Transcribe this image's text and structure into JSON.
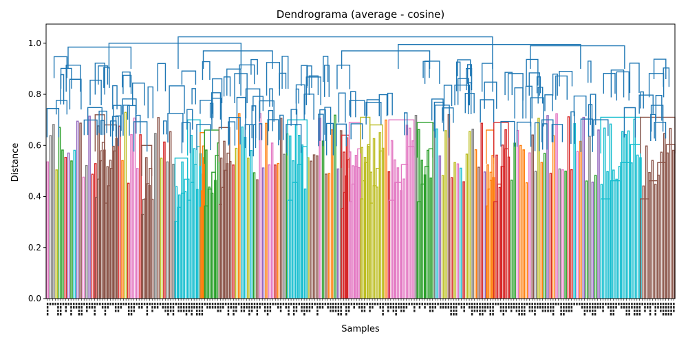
{
  "chart_data": {
    "type": "dendrogram",
    "title": "Dendrograma (average - cosine)",
    "xlabel": "Samples",
    "ylabel": "Distance",
    "ylim": [
      0.0,
      1.075
    ],
    "yticks": [
      0.0,
      0.2,
      0.4,
      0.6,
      0.8,
      1.0
    ],
    "ytick_labels": [
      "0.0",
      "0.2",
      "0.4",
      "0.6",
      "0.8",
      "1.0"
    ],
    "above_threshold_color": "#1f77b4",
    "cluster_colors": [
      "#ff7f0e",
      "#2ca02c",
      "#d62728",
      "#9467bd",
      "#8c564b",
      "#e377c2",
      "#7f7f7f",
      "#bcbd22",
      "#17becf"
    ],
    "top_merges": [
      {
        "left": [
          0.0,
          0.42
        ],
        "right": [
          0.42,
          1.0
        ],
        "height": 1.025
      },
      {
        "left": [
          0.0,
          0.2
        ],
        "right": [
          0.2,
          0.42
        ],
        "height": 1.0
      },
      {
        "left": [
          0.42,
          0.7
        ],
        "right": [
          0.7,
          1.0
        ],
        "height": 0.995
      },
      {
        "left": [
          0.0,
          0.07
        ],
        "right": [
          0.07,
          0.2
        ],
        "height": 0.985
      },
      {
        "left": [
          0.7,
          0.84
        ],
        "right": [
          0.84,
          1.0
        ],
        "height": 0.99
      },
      {
        "left": [
          0.2,
          0.3
        ],
        "right": [
          0.3,
          0.42
        ],
        "height": 0.97
      },
      {
        "left": [
          0.42,
          0.52
        ],
        "right": [
          0.52,
          0.7
        ],
        "height": 0.97
      }
    ],
    "clusters": [
      {
        "x": [
          0.078,
          0.093
        ],
        "color": "#8c564b",
        "height": 0.72
      },
      {
        "x": [
          0.093,
          0.112
        ],
        "color": "#8c564b",
        "height": 0.68
      },
      {
        "x": [
          0.152,
          0.168
        ],
        "color": "#8c564b",
        "height": 0.6
      },
      {
        "x": [
          0.205,
          0.225
        ],
        "color": "#17becf",
        "height": 0.55
      },
      {
        "x": [
          0.225,
          0.245
        ],
        "color": "#17becf",
        "height": 0.7
      },
      {
        "x": [
          0.245,
          0.252
        ],
        "color": "#ff7f0e",
        "height": 0.65
      },
      {
        "x": [
          0.252,
          0.275
        ],
        "color": "#2ca02c",
        "height": 0.66
      },
      {
        "x": [
          0.275,
          0.292
        ],
        "color": "#8c564b",
        "height": 0.67
      },
      {
        "x": [
          0.384,
          0.415
        ],
        "color": "#17becf",
        "height": 0.7
      },
      {
        "x": [
          0.47,
          0.482
        ],
        "color": "#d62728",
        "height": 0.64
      },
      {
        "x": [
          0.482,
          0.5
        ],
        "color": "#e377c2",
        "height": 0.69
      },
      {
        "x": [
          0.5,
          0.515
        ],
        "color": "#bcbd22",
        "height": 0.71
      },
      {
        "x": [
          0.515,
          0.535
        ],
        "color": "#bcbd22",
        "height": 0.68
      },
      {
        "x": [
          0.545,
          0.585
        ],
        "color": "#e377c2",
        "height": 0.7
      },
      {
        "x": [
          0.59,
          0.615
        ],
        "color": "#2ca02c",
        "height": 0.69
      },
      {
        "x": [
          0.7,
          0.712
        ],
        "color": "#ff7f0e",
        "height": 0.66
      },
      {
        "x": [
          0.712,
          0.735
        ],
        "color": "#d62728",
        "height": 0.69
      },
      {
        "x": [
          0.882,
          0.945
        ],
        "color": "#17becf",
        "height": 0.71
      },
      {
        "x": [
          0.945,
          1.0
        ],
        "color": "#8c564b",
        "height": 0.71
      }
    ]
  }
}
